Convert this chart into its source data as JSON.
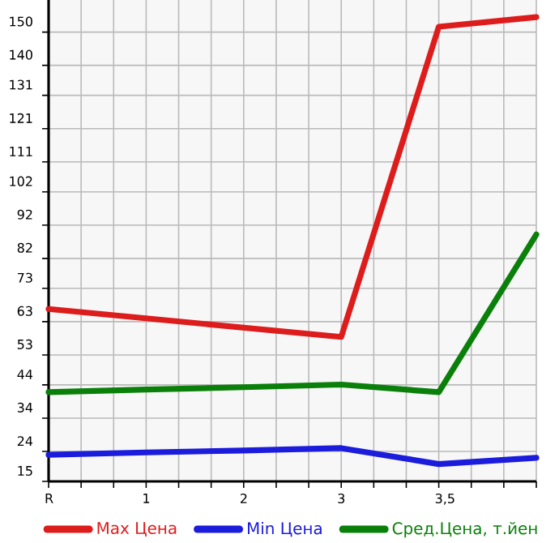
{
  "chart_data": {
    "type": "line",
    "categories": [
      "R",
      "1",
      "2",
      "3",
      "3,5",
      null
    ],
    "series": [
      {
        "name": "Max Цена",
        "color": "#dd1c1c",
        "values": [
          66.8,
          64.0,
          61.2,
          58.4,
          151.6,
          154.5
        ]
      },
      {
        "name": "Min Цена",
        "color": "#1c1cdd",
        "values": [
          23.0,
          23.7,
          24.3,
          25.0,
          20.2,
          22.1
        ]
      },
      {
        "name": "Сред.Цена, т.йен",
        "color": "#0a800a",
        "values": [
          41.8,
          42.6,
          43.3,
          44.1,
          41.8,
          89.2
        ]
      }
    ],
    "ylim": [
      15,
      159.64
    ],
    "yticks": [
      15,
      24,
      34,
      44,
      53,
      63,
      73,
      82,
      92,
      102,
      111,
      121,
      131,
      140,
      150
    ],
    "grid": true,
    "legend": "bottom",
    "marker": "none",
    "line_style": "solid"
  }
}
